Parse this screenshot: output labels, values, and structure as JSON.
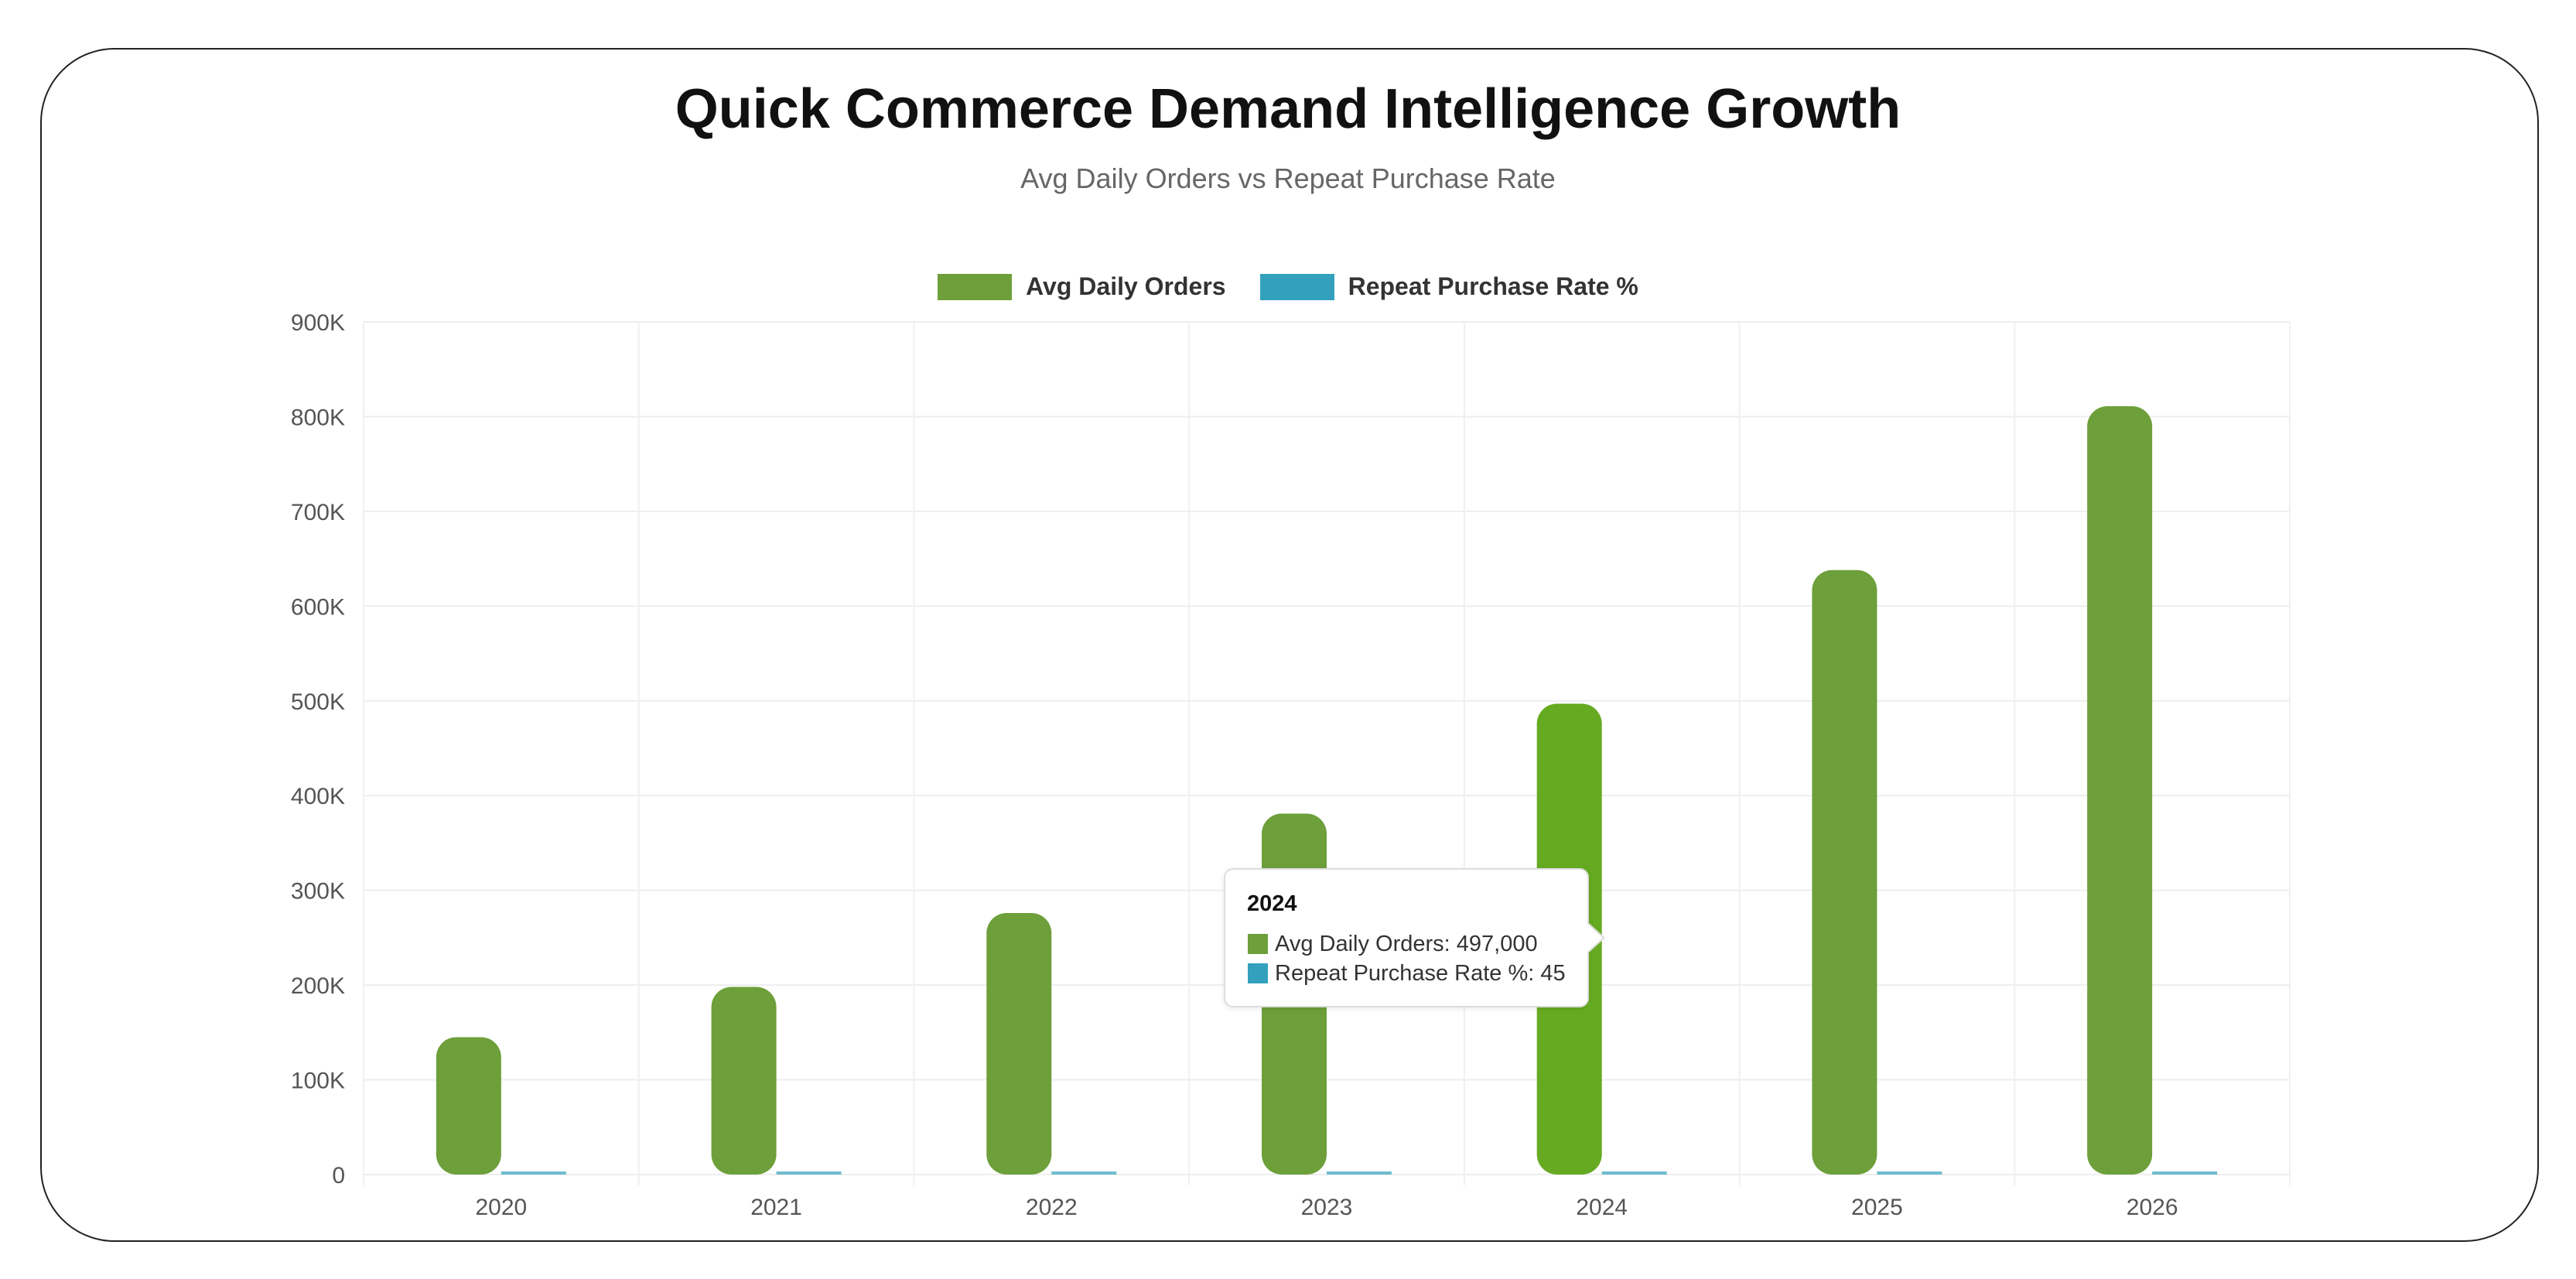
{
  "chart_data": {
    "type": "bar",
    "title": "Quick Commerce Demand Intelligence Growth",
    "subtitle": "Avg Daily Orders vs Repeat Purchase Rate",
    "categories": [
      "2020",
      "2021",
      "2022",
      "2023",
      "2024",
      "2025",
      "2026"
    ],
    "series": [
      {
        "name": "Avg Daily Orders",
        "color": "#6d9f3a",
        "values": [
          145000,
          198000,
          276000,
          381000,
          497000,
          638000,
          811000
        ]
      },
      {
        "name": "Repeat Purchase Rate %",
        "color": "#33a1bd",
        "values": [
          24,
          29,
          33,
          39,
          45,
          51,
          58
        ]
      }
    ],
    "highlight_color": "#66aa22",
    "ylim": [
      0,
      900000
    ],
    "yticks": [
      0,
      100000,
      200000,
      300000,
      400000,
      500000,
      600000,
      700000,
      800000,
      900000
    ],
    "ytick_labels": [
      "0",
      "100K",
      "200K",
      "300K",
      "400K",
      "500K",
      "600K",
      "700K",
      "800K",
      "900K"
    ],
    "grid": true,
    "legend": "top-center"
  },
  "tooltip": {
    "title": "2024",
    "rows": [
      {
        "label": "Avg Daily Orders: 497,000",
        "color": "#6d9f3a"
      },
      {
        "label": "Repeat Purchase Rate %: 45",
        "color": "#33a1bd"
      }
    ]
  }
}
